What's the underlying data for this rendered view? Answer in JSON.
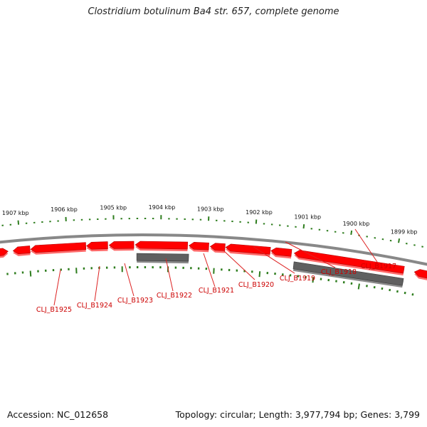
{
  "title": "Clostridium botulinum Ba4 str. 657, complete genome",
  "footer": {
    "accession": "Accession: NC_012658",
    "summary": "Topology: circular; Length: 3,977,794 bp; Genes: 3,799"
  },
  "colors": {
    "forward_gene": "#ff0000",
    "reverse_gene": "#606060",
    "backbone": "#888888",
    "tick": "#2e7d1e",
    "label": "#cc0000"
  },
  "scale_labels": [
    "1899 kbp",
    "1900 kbp",
    "1901 kbp",
    "1902 kbp",
    "1903 kbp",
    "1904 kbp",
    "1905 kbp",
    "1906 kbp",
    "1907 kbp"
  ],
  "gene_labels": [
    "CLJ_B1917",
    "CLJ_B1918",
    "CLJ_B1919",
    "CLJ_B1920",
    "CLJ_B1921",
    "CLJ_B1922",
    "CLJ_B1923",
    "CLJ_B1924",
    "CLJ_B1925"
  ]
}
